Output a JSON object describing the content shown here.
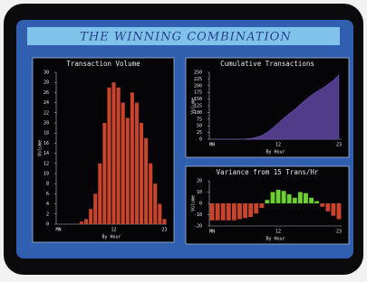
{
  "header": {
    "title": "THE WINNING COMBINATION"
  },
  "chart_data": [
    {
      "type": "bar",
      "title": "Transaction Volume",
      "x_label": "By Hour",
      "y_label": "Volume",
      "categories": [
        "MN",
        null,
        null,
        null,
        null,
        null,
        null,
        null,
        null,
        null,
        null,
        null,
        "12",
        null,
        null,
        null,
        null,
        null,
        null,
        null,
        null,
        null,
        null,
        "23"
      ],
      "values": [
        0,
        0,
        0,
        0,
        0,
        0.5,
        1,
        3,
        6,
        12,
        20,
        27,
        28,
        27,
        24,
        21,
        26,
        24,
        20,
        17,
        12,
        8,
        4,
        1
      ],
      "color": "#c8442c",
      "ylim": [
        0,
        30
      ],
      "yticks": [
        0,
        2,
        4,
        6,
        8,
        10,
        12,
        14,
        16,
        18,
        20,
        22,
        24,
        26,
        28,
        30
      ]
    },
    {
      "type": "area",
      "title": "Cumulative Transactions",
      "x_label": "By Hour",
      "y_label": "Volume",
      "categories": [
        "MN",
        null,
        null,
        null,
        null,
        null,
        null,
        null,
        null,
        null,
        null,
        null,
        "12",
        null,
        null,
        null,
        null,
        null,
        null,
        null,
        null,
        null,
        null,
        "23"
      ],
      "values": [
        0,
        0,
        0,
        0,
        0,
        0,
        1,
        3,
        7,
        14,
        26,
        42,
        60,
        78,
        95,
        111,
        130,
        148,
        164,
        178,
        190,
        205,
        220,
        240
      ],
      "color": "#6b4fb5",
      "ylim": [
        0,
        250
      ],
      "yticks": [
        0,
        25,
        50,
        75,
        100,
        125,
        150,
        175,
        200,
        225,
        250
      ]
    },
    {
      "type": "bar",
      "title": "Variance from 15 Trans/Hr",
      "x_label": "By Hour",
      "y_label": "Volume",
      "categories": [
        "MN",
        null,
        null,
        null,
        null,
        null,
        null,
        null,
        null,
        null,
        null,
        null,
        "12",
        null,
        null,
        null,
        null,
        null,
        null,
        null,
        null,
        null,
        null,
        "23"
      ],
      "values": [
        -15,
        -15,
        -15,
        -15,
        -15,
        -14,
        -13,
        -12,
        -9,
        -4,
        3,
        10,
        12,
        11,
        8,
        5,
        10,
        9,
        5,
        2,
        -3,
        -7,
        -11,
        -14
      ],
      "color": "#c8442c",
      "positive_color": "#6fcf2f",
      "ylim": [
        -20,
        20
      ],
      "yticks": [
        -20,
        -10,
        0,
        10,
        20
      ]
    }
  ]
}
